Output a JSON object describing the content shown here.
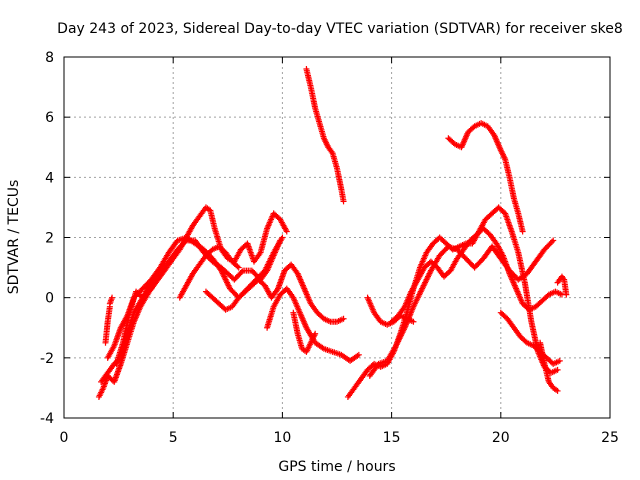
{
  "chart_data": {
    "type": "scatter",
    "title": "Day 243 of 2023, Sidereal Day-to-day VTEC variation (SDTVAR) for receiver ske8",
    "xlabel": "GPS time / hours",
    "ylabel": "SDTVAR / TECUs",
    "xlim": [
      0,
      25
    ],
    "ylim": [
      -4,
      8
    ],
    "xticks": [
      "0",
      "5",
      "10",
      "15",
      "20",
      "25"
    ],
    "yticks": [
      "-4",
      "-2",
      "0",
      "2",
      "4",
      "6",
      "8"
    ],
    "grid": true,
    "marker": "+",
    "color": "#ff0000",
    "series": [
      {
        "x": [
          1.6,
          1.8,
          2.0,
          2.3,
          2.6,
          2.9,
          3.2,
          3.5,
          3.9,
          4.3,
          4.7,
          5.0,
          5.3,
          5.6,
          5.9,
          6.2,
          6.5,
          6.7,
          6.9,
          7.2,
          7.5,
          7.8,
          8.1,
          8.4,
          8.7,
          9.0,
          9.3,
          9.6,
          9.9,
          10.2
        ],
        "y": [
          -3.3,
          -3.0,
          -2.6,
          -2.8,
          -2.2,
          -1.5,
          -0.8,
          -0.3,
          0.2,
          0.6,
          1.0,
          1.3,
          1.6,
          2.0,
          2.4,
          2.7,
          3.0,
          2.9,
          2.3,
          1.6,
          1.3,
          1.2,
          1.6,
          1.8,
          1.2,
          1.5,
          2.3,
          2.8,
          2.6,
          2.2
        ]
      },
      {
        "x": [
          1.7,
          2.0,
          2.3,
          2.6,
          2.9,
          3.2,
          3.6,
          4.0,
          4.4,
          4.8,
          5.2,
          5.6,
          6.0,
          6.4,
          6.8,
          7.2,
          7.5,
          7.8,
          8.2,
          8.6,
          9.0,
          9.3,
          9.6,
          9.9
        ],
        "y": [
          -2.8,
          -2.5,
          -2.2,
          -2.0,
          -1.2,
          -0.5,
          0.0,
          0.5,
          0.9,
          1.2,
          1.6,
          1.9,
          1.9,
          1.5,
          1.2,
          1.0,
          0.8,
          0.6,
          0.9,
          0.9,
          0.6,
          0.9,
          1.4,
          1.9
        ]
      },
      {
        "x": [
          2.0,
          2.3,
          2.6,
          2.9,
          3.2,
          3.6,
          4.0,
          4.4,
          4.8,
          5.2,
          5.6,
          6.0,
          6.4,
          6.8,
          7.2,
          7.6,
          8.0,
          8.4,
          8.8,
          9.2,
          9.6,
          10.0
        ],
        "y": [
          -2.0,
          -1.6,
          -1.0,
          -0.6,
          0.0,
          0.3,
          0.6,
          1.0,
          1.5,
          1.9,
          2.0,
          1.8,
          1.6,
          1.3,
          0.9,
          0.3,
          0.0,
          0.3,
          0.6,
          0.9,
          1.5,
          2.0
        ]
      },
      {
        "x": [
          2.4,
          2.7,
          3.0,
          3.3,
          3.6,
          4.0
        ],
        "y": [
          -2.2,
          -1.5,
          -0.5,
          0.2,
          0.0,
          0.3
        ]
      },
      {
        "x": [
          1.9,
          2.0,
          2.1,
          2.1,
          2.2
        ],
        "y": [
          -1.5,
          -0.8,
          -0.3,
          -0.2,
          0.0
        ]
      },
      {
        "x": [
          5.3,
          5.6,
          5.9,
          6.2,
          6.5,
          6.8,
          7.1,
          7.4,
          7.7,
          8.0
        ],
        "y": [
          0.0,
          0.4,
          0.8,
          1.1,
          1.4,
          1.6,
          1.7,
          1.5,
          1.2,
          1.0
        ]
      },
      {
        "x": [
          6.5,
          6.8,
          7.1,
          7.4,
          7.7,
          8.0,
          8.3,
          8.6,
          8.9,
          9.2,
          9.5,
          9.8,
          10.1,
          10.4,
          10.7,
          11.0,
          11.3,
          11.6,
          11.9,
          12.2,
          12.5,
          12.8
        ],
        "y": [
          0.2,
          0.0,
          -0.2,
          -0.4,
          -0.3,
          0.0,
          0.2,
          0.4,
          0.6,
          0.4,
          0.0,
          0.3,
          0.9,
          1.1,
          0.8,
          0.3,
          -0.2,
          -0.5,
          -0.7,
          -0.8,
          -0.8,
          -0.7
        ]
      },
      {
        "x": [
          9.3,
          9.6,
          9.9,
          10.2,
          10.5,
          10.8,
          11.1,
          11.5,
          11.9,
          12.3,
          12.7,
          13.1,
          13.5
        ],
        "y": [
          -1.0,
          -0.3,
          0.1,
          0.3,
          0.0,
          -0.5,
          -1.0,
          -1.5,
          -1.7,
          -1.8,
          -1.9,
          -2.1,
          -1.9
        ]
      },
      {
        "x": [
          10.5,
          10.7,
          10.9,
          11.1,
          11.3,
          11.5
        ],
        "y": [
          -0.5,
          -1.2,
          -1.7,
          -1.8,
          -1.5,
          -1.2
        ]
      },
      {
        "x": [
          11.1,
          11.3,
          11.5,
          11.7,
          11.9,
          12.1,
          12.3,
          12.5,
          12.7,
          12.8
        ],
        "y": [
          7.6,
          7.0,
          6.3,
          5.8,
          5.3,
          5.0,
          4.8,
          4.3,
          3.6,
          3.2
        ]
      },
      {
        "x": [
          13.0,
          13.3,
          13.6,
          13.9,
          14.2,
          14.5,
          14.8,
          15.1,
          15.4,
          15.7,
          16.0,
          16.3,
          16.6,
          16.9,
          17.2,
          17.5,
          17.8,
          18.1,
          18.4,
          18.7,
          19.0,
          19.3,
          19.6,
          19.9,
          20.2,
          20.5,
          20.8,
          21.1,
          21.4,
          21.7,
          22.0,
          22.3,
          22.6
        ],
        "y": [
          -3.3,
          -3.0,
          -2.7,
          -2.4,
          -2.2,
          -2.3,
          -2.2,
          -1.8,
          -1.2,
          -0.5,
          0.3,
          1.0,
          1.5,
          1.8,
          2.0,
          1.8,
          1.6,
          1.7,
          1.8,
          1.8,
          2.2,
          2.6,
          2.8,
          3.0,
          2.8,
          2.2,
          1.5,
          0.5,
          -0.8,
          -1.8,
          -2.3,
          -2.5,
          -2.4
        ]
      },
      {
        "x": [
          14.0,
          14.4,
          14.8,
          15.2,
          15.6,
          16.0,
          16.4,
          16.8,
          17.2,
          17.6,
          18.0,
          18.4,
          18.8,
          19.2,
          19.6,
          20.0,
          20.4,
          20.8,
          21.2,
          21.6,
          22.0,
          22.4
        ],
        "y": [
          -2.6,
          -2.2,
          -2.1,
          -1.6,
          -1.0,
          -0.3,
          0.3,
          0.9,
          1.4,
          1.7,
          1.6,
          1.3,
          1.0,
          1.3,
          1.7,
          1.3,
          0.9,
          0.6,
          0.8,
          1.2,
          1.6,
          1.9
        ]
      },
      {
        "x": [
          15.0,
          15.3,
          15.6,
          15.9,
          16.2,
          16.5,
          16.8,
          17.1,
          17.4,
          17.7,
          18.0,
          18.3,
          18.6,
          18.9,
          19.2,
          19.5,
          19.8,
          20.1,
          20.4,
          20.7,
          21.0,
          21.3,
          21.6,
          21.9,
          22.2,
          22.5,
          22.8
        ],
        "y": [
          -0.8,
          -0.6,
          -0.3,
          0.2,
          0.6,
          1.0,
          1.2,
          1.0,
          0.7,
          0.9,
          1.3,
          1.6,
          1.9,
          2.1,
          2.3,
          2.1,
          1.8,
          1.4,
          0.8,
          0.3,
          -0.2,
          -0.4,
          -0.3,
          -0.1,
          0.1,
          0.2,
          0.1
        ]
      },
      {
        "x": [
          13.9,
          14.2,
          14.5,
          14.8,
          15.1,
          15.4,
          15.7,
          16.0
        ],
        "y": [
          0.0,
          -0.5,
          -0.8,
          -0.9,
          -0.8,
          -0.6,
          -0.7,
          -0.8
        ]
      },
      {
        "x": [
          17.6,
          17.9,
          18.2,
          18.5,
          18.8,
          19.1,
          19.4,
          19.7,
          20.0,
          20.2,
          20.4,
          20.6,
          20.8,
          21.0
        ],
        "y": [
          5.3,
          5.1,
          5.0,
          5.5,
          5.7,
          5.8,
          5.7,
          5.4,
          4.9,
          4.6,
          4.0,
          3.3,
          2.8,
          2.2
        ]
      },
      {
        "x": [
          20.0,
          20.3,
          20.6,
          20.9,
          21.2,
          21.5,
          21.8,
          22.1,
          22.4,
          22.7
        ],
        "y": [
          -0.5,
          -0.7,
          -1.0,
          -1.3,
          -1.5,
          -1.6,
          -1.8,
          -2.0,
          -2.2,
          -2.1
        ]
      },
      {
        "x": [
          21.8,
          22.0,
          22.2,
          22.4,
          22.6
        ],
        "y": [
          -1.5,
          -2.2,
          -2.8,
          -3.0,
          -3.1
        ]
      },
      {
        "x": [
          22.6,
          22.8,
          22.9,
          23.0
        ],
        "y": [
          0.5,
          0.7,
          0.6,
          0.1
        ]
      }
    ]
  }
}
